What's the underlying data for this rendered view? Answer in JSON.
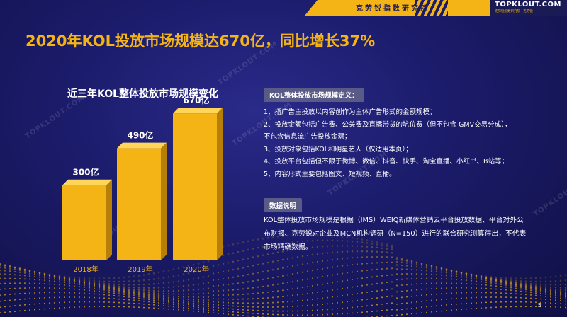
{
  "header": {
    "org_name": "克劳锐指数研究院",
    "logo_text": "TOPKLOUT.COM",
    "logo_subtext": "克劳锐指数研究院 · 克劳锐",
    "accent_color": "#f4b416"
  },
  "headline": "2020年KOL投放市场规模达670亿，同比增长37%",
  "watermark_text": "TOPKLOUT.COM",
  "chart_data": {
    "type": "bar",
    "title": "近三年KOL整体投放市场规模变化",
    "categories": [
      "2018年",
      "2019年",
      "2020年"
    ],
    "values": [
      300,
      490,
      670
    ],
    "value_labels": [
      "300亿",
      "490亿",
      "670亿"
    ],
    "unit": "亿",
    "ylim": [
      0,
      700
    ],
    "bar_color": "#f4b416",
    "grid": false,
    "legend": "none"
  },
  "definition": {
    "label": "KOL整体投放市场规模定义：",
    "items": [
      "1、指广告主投放以内容创作为主体广告形式的金额规模；",
      "2、投放金额包括广告费、公关费及直播带货的坑位费（但不包含 GMV交易分成），",
      "不包含信息流广告投放金额；",
      "3、投放对象包括KOL和明星艺人（仅适用本页）；",
      "4、投放平台包括但不限于微博、微信、抖音、快手、淘宝直播、小红书、B站等；",
      "5、内容形式主要包括图文、短视频、直播。"
    ]
  },
  "data_note": {
    "label": "数据说明",
    "text": "KOL整体投放市场规模是根据（IMS）WEIQ新媒体营销云平台投放数据、平台对外公布财报、克劳锐对企业及MCN机构调研（N=150）进行的联合研究测算得出，不代表市场精确数据。"
  },
  "page_number": "5"
}
